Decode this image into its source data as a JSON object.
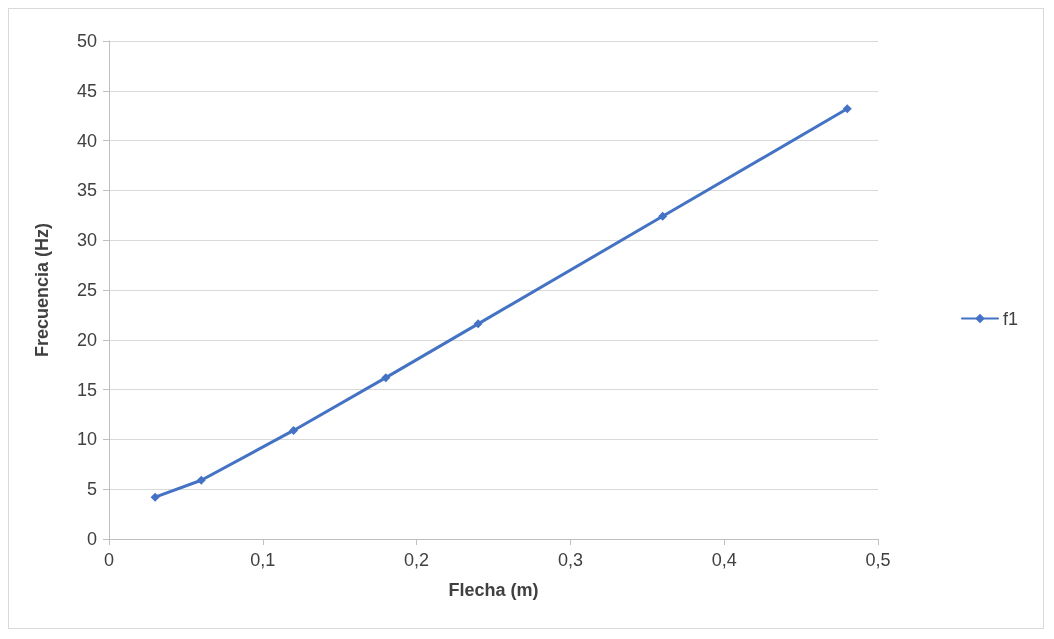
{
  "chart_data": {
    "type": "line",
    "xlabel": "Flecha (m)",
    "ylabel": "Frecuencia (Hz)",
    "x": [
      0.03,
      0.06,
      0.12,
      0.18,
      0.24,
      0.36,
      0.48
    ],
    "series": [
      {
        "name": "f1",
        "color": "#4472c4",
        "values": [
          4.2,
          5.9,
          10.9,
          16.2,
          21.6,
          32.4,
          43.2
        ]
      }
    ],
    "xlim": [
      0,
      0.5
    ],
    "xticks": [
      0,
      {
        "value": 0.1,
        "label": "0,1"
      },
      {
        "value": 0.2,
        "label": "0,2"
      },
      {
        "value": 0.3,
        "label": "0,3"
      },
      {
        "value": 0.4,
        "label": "0,4"
      },
      {
        "value": 0.5,
        "label": "0,5"
      }
    ],
    "ylim": [
      0,
      50
    ],
    "yticks": [
      0,
      5,
      10,
      15,
      20,
      25,
      30,
      35,
      40,
      45,
      50
    ],
    "grid": "y",
    "legend": "right",
    "marker": "diamond",
    "line_style": "solid"
  }
}
